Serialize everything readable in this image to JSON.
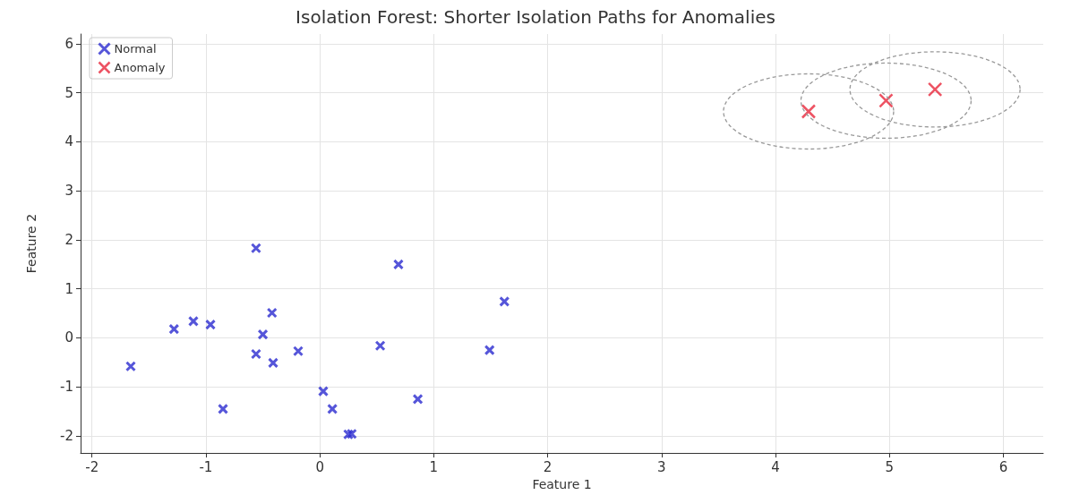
{
  "chart_data": {
    "type": "scatter",
    "title": "Isolation Forest: Shorter Isolation Paths for Anomalies",
    "xlabel": "Feature 1",
    "ylabel": "Feature 2",
    "series": [
      {
        "name": "Normal",
        "color": "#2b2bd0",
        "x": [
          -1.66,
          -1.28,
          -1.11,
          -0.96,
          -0.56,
          -0.42,
          -0.5,
          -0.56,
          -0.41,
          -0.19,
          -0.85,
          0.03,
          0.11,
          0.25,
          0.28,
          0.53,
          0.69,
          0.86,
          1.49,
          1.62
        ],
        "values": [
          -0.58,
          0.18,
          0.34,
          0.27,
          1.83,
          0.51,
          0.07,
          -0.33,
          -0.51,
          -0.27,
          -1.45,
          -1.09,
          -1.45,
          -1.97,
          -1.96,
          -0.16,
          1.5,
          -1.25,
          -0.25,
          0.74
        ]
      },
      {
        "name": "Anomaly",
        "color": "#e8283c",
        "x": [
          4.29,
          4.97,
          5.4
        ],
        "values": [
          4.62,
          4.84,
          5.07
        ]
      }
    ],
    "xlim": [
      -2.1,
      6.35
    ],
    "ylim": [
      -2.35,
      6.2
    ],
    "xticks": [
      -2,
      -1,
      0,
      1,
      2,
      3,
      4,
      5,
      6
    ],
    "yticks": [
      -2,
      -1,
      0,
      1,
      2,
      3,
      4,
      5,
      6
    ],
    "grid": true,
    "legend": "top left",
    "marker": "cross"
  }
}
